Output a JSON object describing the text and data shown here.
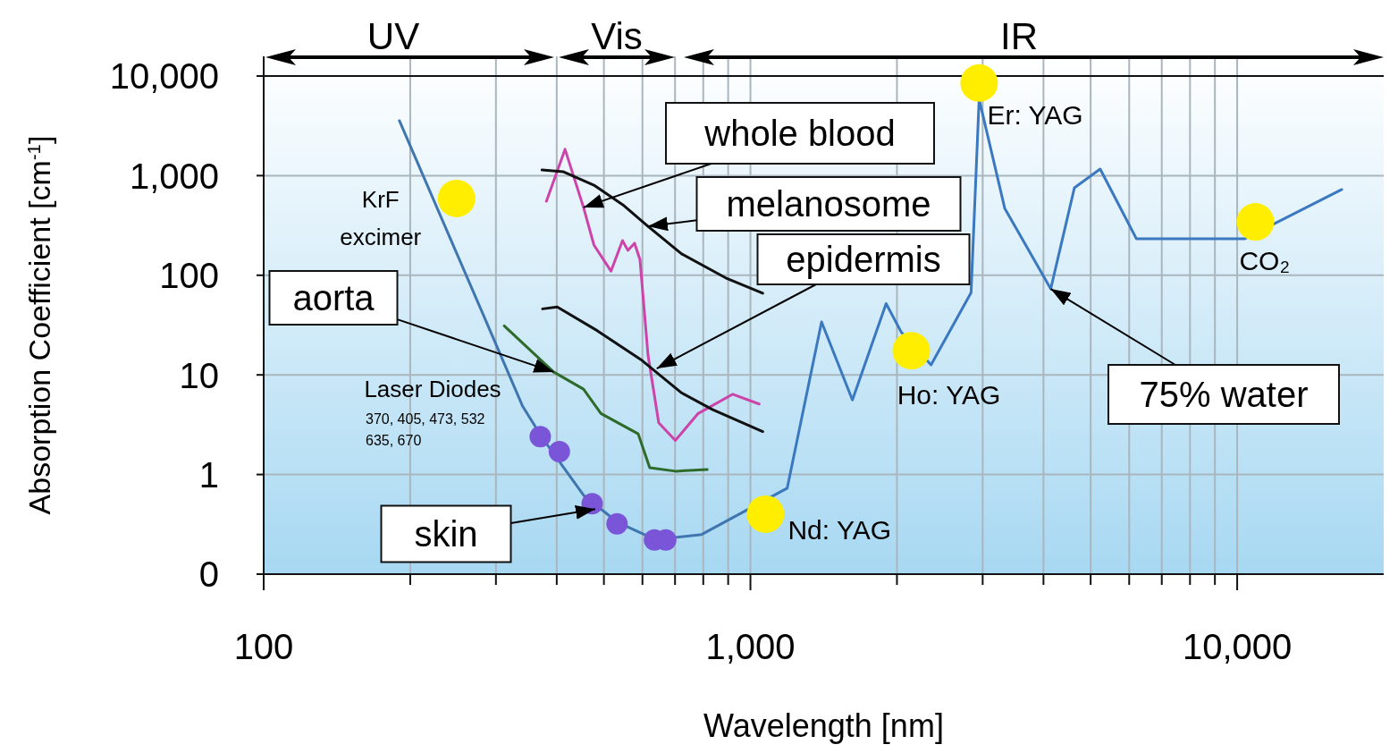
{
  "chart_data": {
    "type": "line",
    "xlabel": "Wavelength [nm]",
    "ylabel": "Absorption Coefficient [cm$^{-1}$]",
    "log": "xy",
    "grid": true,
    "xlim": [
      100,
      20000
    ],
    "ylim": [
      0.1,
      10000
    ],
    "xticks": [
      100,
      {
        "value": 200,
        "label": null
      },
      {
        "value": 300,
        "label": null
      },
      {
        "value": 400,
        "label": null
      },
      {
        "value": 500,
        "label": null
      },
      {
        "value": 600,
        "label": null
      },
      {
        "value": 700,
        "label": null
      },
      {
        "value": 800,
        "label": null
      },
      {
        "value": 900,
        "label": null
      },
      {
        "value": 1000,
        "label": "1,000"
      },
      {
        "value": 2000,
        "label": null
      },
      {
        "value": 3000,
        "label": null
      },
      {
        "value": 4000,
        "label": null
      },
      {
        "value": 5000,
        "label": null
      },
      {
        "value": 6000,
        "label": null
      },
      {
        "value": 7000,
        "label": null
      },
      {
        "value": 8000,
        "label": null
      },
      {
        "value": 9000,
        "label": null
      },
      {
        "value": 10000,
        "label": "10,000"
      }
    ],
    "yticks": [
      {
        "value": 0.1,
        "label": "0"
      },
      1,
      10,
      100,
      {
        "value": 1000,
        "label": "1,000"
      },
      {
        "value": 10000,
        "label": "10,000"
      }
    ],
    "series": [
      {
        "color": "#3f76b0",
        "x": [
          190,
          282,
          340,
          373,
          454,
          534,
          616,
          678,
          794,
          975
        ],
        "values": [
          3560,
          41,
          4.9,
          2.36,
          0.62,
          0.33,
          0.24,
          0.23,
          0.25,
          0.43
        ]
      },
      {
        "color": "#3a78c0",
        "x": [
          975,
          1190,
          1400,
          1620,
          1900,
          2040,
          2350,
          2840,
          2950,
          3330,
          4140,
          4630,
          5230,
          6210,
          7160,
          10350,
          16400
        ],
        "values": [
          0.43,
          0.73,
          34,
          5.6,
          52,
          27,
          12.6,
          67,
          5850,
          470,
          73,
          755,
          1165,
          232,
          232,
          232,
          725
        ]
      },
      {
        "color": "#2e6b2a",
        "x": [
          312,
          394,
          454,
          493,
          588,
          621,
          701,
          815
        ],
        "values": [
          31,
          10.7,
          7.2,
          4.1,
          2.56,
          1.17,
          1.08,
          1.12
        ]
      },
      {
        "color": "#cc44aa",
        "x": [
          381,
          416,
          454,
          477,
          517,
          546,
          560,
          578,
          593,
          616,
          648,
          701,
          781,
          920,
          1042
        ],
        "values": [
          554,
          1840,
          480,
          201,
          110,
          223,
          178,
          210,
          144,
          15.8,
          3.3,
          2.2,
          4.1,
          6.4,
          5.1
        ]
      },
      {
        "color": "#111111",
        "x": [
          373,
          412,
          477,
          550,
          616,
          722,
          890,
          1060
        ],
        "values": [
          1140,
          1096,
          803,
          499,
          310,
          164,
          94,
          66
        ]
      },
      {
        "color": "#111111",
        "x": [
          374,
          401,
          485,
          595,
          722,
          835,
          1060
        ],
        "values": [
          46,
          48,
          27.7,
          14.3,
          6.6,
          4.5,
          2.7
        ]
      },
      {
        "type": "scatter",
        "marker": "circle",
        "color": "#7b55d8",
        "x": [
          370,
          405,
          473,
          532,
          635,
          670
        ],
        "values": [
          2.4,
          1.7,
          0.51,
          0.32,
          0.22,
          0.22
        ]
      },
      {
        "type": "scatter",
        "marker": "circle",
        "color": "#ffee00",
        "x": [
          249,
          1074,
          2140,
          2950,
          10900
        ],
        "values": [
          590,
          0.4,
          17.5,
          8500,
          344
        ]
      }
    ],
    "annotations": [
      "UV",
      "Vis",
      "IR",
      {
        "text": "whole blood",
        "x": 454,
        "y": 480
      },
      {
        "text": "melanosome",
        "x": 616,
        "y": 310
      },
      {
        "text": "epidermis",
        "x": 642,
        "y": 11.6
      },
      {
        "text": "aorta",
        "x": 394,
        "y": 10.7
      },
      {
        "text": "skin",
        "x": 480,
        "y": 0.45
      },
      {
        "text": "75% water",
        "x": 4140,
        "y": 73
      },
      {
        "text": "KrF\nexcimer",
        "x": 249,
        "y": 590
      },
      {
        "text": "Nd: YAG",
        "x": 1074,
        "y": 0.4
      },
      {
        "text": "Ho: YAG",
        "x": 2140,
        "y": 17.5
      },
      {
        "text": "Er: YAG",
        "x": 2950,
        "y": 8500
      },
      {
        "text": "CO₂",
        "x": 10900,
        "y": 344
      },
      "Laser Diodes",
      "370, 405, 473, 532\n635, 670"
    ]
  }
}
